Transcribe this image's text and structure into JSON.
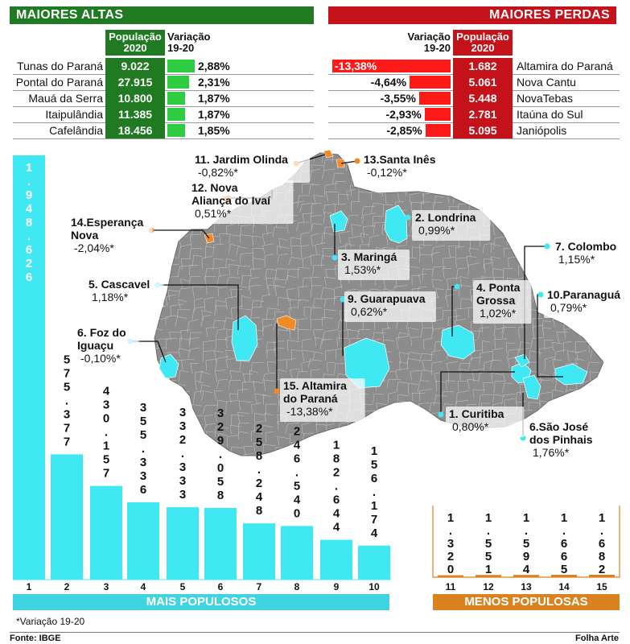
{
  "altas": {
    "title": "MAIORES ALTAS",
    "col_pop": [
      "População",
      "2020"
    ],
    "col_var": [
      "Variação",
      "19-20"
    ],
    "rows": [
      {
        "name": "Tunas do Paraná",
        "pop": "9.022",
        "var": "2,88%",
        "value": 2.88
      },
      {
        "name": "Pontal do Paraná",
        "pop": "27.915",
        "var": "2,31%",
        "value": 2.31
      },
      {
        "name": "Mauá da Serra",
        "pop": "10.800",
        "var": "1,87%",
        "value": 1.87
      },
      {
        "name": "Itaipulândia",
        "pop": "11.385",
        "var": "1,87%",
        "value": 1.87
      },
      {
        "name": "Cafelândia",
        "pop": "18.456",
        "var": "1,85%",
        "value": 1.85
      }
    ]
  },
  "perdas": {
    "title": "MAIORES PERDAS",
    "col_var": [
      "Variação",
      "19-20"
    ],
    "col_pop": [
      "População",
      "2020"
    ],
    "rows": [
      {
        "name": "Altamira do Paraná",
        "pop": "1.682",
        "var": "-13,38%",
        "value": -13.38
      },
      {
        "name": "Nova Cantu",
        "pop": "5.061",
        "var": "-4,64%",
        "value": -4.64
      },
      {
        "name": "NovaTebas",
        "pop": "5.448",
        "var": "-3,55%",
        "value": -3.55
      },
      {
        "name": "Itaúna do Sul",
        "pop": "2.781",
        "var": "-2,93%",
        "value": -2.93
      },
      {
        "name": "Janiópolis",
        "pop": "5.095",
        "var": "-2,85%",
        "value": -2.85
      }
    ]
  },
  "map_labels": [
    {
      "id": "jardim-olinda",
      "lines": [
        "11. Jardim Olinda"
      ],
      "value": "-0,82%*",
      "marker": "orange"
    },
    {
      "id": "santa-ines",
      "lines": [
        "13.Santa Inês"
      ],
      "value": "-0,12%*",
      "marker": "orange"
    },
    {
      "id": "nova-alianca",
      "lines": [
        "12. Nova",
        "Aliança do Ivaí"
      ],
      "value": "0,51%*",
      "marker": "orange"
    },
    {
      "id": "londrina",
      "lines": [
        "2. Londrina"
      ],
      "value": "0,99%*",
      "marker": "cyan"
    },
    {
      "id": "esperanca-nova",
      "lines": [
        "14.Esperança",
        "Nova"
      ],
      "value": "-2,04%*",
      "marker": "orange"
    },
    {
      "id": "maringa",
      "lines": [
        "3. Maringá"
      ],
      "value": "1,53%*",
      "marker": "cyan"
    },
    {
      "id": "colombo",
      "lines": [
        "7. Colombo"
      ],
      "value": "1,15%*",
      "marker": "cyan"
    },
    {
      "id": "cascavel",
      "lines": [
        "5. Cascavel"
      ],
      "value": "1,18%*",
      "marker": "cyan"
    },
    {
      "id": "ponta-grossa",
      "lines": [
        "4. Ponta",
        "Grossa"
      ],
      "value": "1,02%*",
      "marker": "cyan"
    },
    {
      "id": "guarapuava",
      "lines": [
        "9. Guarapuava"
      ],
      "value": "0,62%*",
      "marker": "cyan"
    },
    {
      "id": "paranagua",
      "lines": [
        "10.Paranaguá"
      ],
      "value": "0,79%*",
      "marker": "cyan"
    },
    {
      "id": "foz",
      "lines": [
        "6. Foz do",
        "Iguaçu"
      ],
      "value": "-0,10%*",
      "marker": "cyan"
    },
    {
      "id": "altamira",
      "lines": [
        "15. Altamira",
        "do Paraná"
      ],
      "value": "-13,38%*",
      "marker": "orange"
    },
    {
      "id": "curitiba",
      "lines": [
        "1. Curitiba"
      ],
      "value": "0,80%*",
      "marker": "cyan"
    },
    {
      "id": "sao-jose",
      "lines": [
        "6.São José",
        "dos Pinhais"
      ],
      "value": "1,76%*",
      "marker": "cyan"
    }
  ],
  "chart_data": {
    "type": "bar",
    "mais_populosos": {
      "label": "MAIS POPULOSOS",
      "categories": [
        "1",
        "2",
        "3",
        "4",
        "5",
        "6",
        "7",
        "8",
        "9",
        "10"
      ],
      "values": [
        1948626,
        575377,
        430157,
        355336,
        332333,
        329058,
        258248,
        246540,
        182644,
        156174
      ],
      "labels": [
        "1.948.626",
        "575.377",
        "430.157",
        "355.336",
        "332.333",
        "329.058",
        "258.248",
        "246.540",
        "182.644",
        "156.174"
      ],
      "color": "#3fe8f2"
    },
    "menos_populosos": {
      "label": "MENOS POPULOSAS",
      "categories": [
        "11",
        "12",
        "13",
        "14",
        "15"
      ],
      "values": [
        1320,
        1551,
        1594,
        1665,
        1682
      ],
      "labels": [
        "1.320",
        "1.551",
        "1.594",
        "1.665",
        "1.682"
      ],
      "color": "#d9821f"
    }
  },
  "footnote": "*Variação 19-20",
  "source": "Fonte: IBGE",
  "credit": "Folha Arte",
  "colors": {
    "green": "#1f7a22",
    "red": "#c4121b",
    "cyan": "#3fe8f2",
    "orange": "#f08a24",
    "map": "#8c8c8c"
  }
}
